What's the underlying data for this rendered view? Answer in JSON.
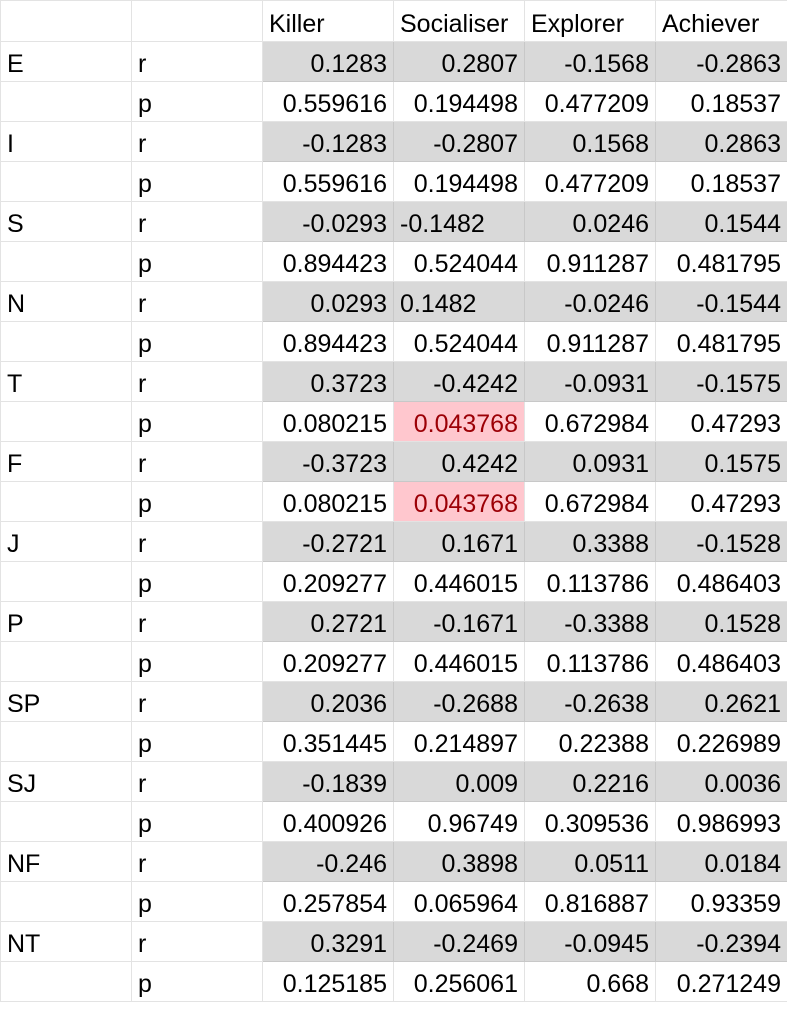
{
  "header": [
    "",
    "",
    "Killer",
    "Socialiser",
    "Explorer",
    "Achiever"
  ],
  "rows": [
    {
      "trait": "E",
      "r": [
        "0.1283",
        "0.2807",
        "-0.1568",
        "-0.2863"
      ],
      "p": [
        "0.559616",
        "0.194498",
        "0.477209",
        "0.18537"
      ]
    },
    {
      "trait": "I",
      "r": [
        "-0.1283",
        "-0.2807",
        "0.1568",
        "0.2863"
      ],
      "p": [
        "0.559616",
        "0.194498",
        "0.477209",
        "0.18537"
      ]
    },
    {
      "trait": "S",
      "r": [
        "-0.0293",
        "-0.1482",
        "0.0246",
        "0.1544"
      ],
      "p": [
        "0.894423",
        "0.524044",
        "0.911287",
        "0.481795"
      ]
    },
    {
      "trait": "N",
      "r": [
        "0.0293",
        "0.1482",
        "-0.0246",
        "-0.1544"
      ],
      "p": [
        "0.894423",
        "0.524044",
        "0.911287",
        "0.481795"
      ]
    },
    {
      "trait": "T",
      "r": [
        "0.3723",
        "-0.4242",
        "-0.0931",
        "-0.1575"
      ],
      "p": [
        "0.080215",
        "0.043768",
        "0.672984",
        "0.47293"
      ]
    },
    {
      "trait": "F",
      "r": [
        "-0.3723",
        "0.4242",
        "0.0931",
        "0.1575"
      ],
      "p": [
        "0.080215",
        "0.043768",
        "0.672984",
        "0.47293"
      ]
    },
    {
      "trait": "J",
      "r": [
        "-0.2721",
        "0.1671",
        "0.3388",
        "-0.1528"
      ],
      "p": [
        "0.209277",
        "0.446015",
        "0.113786",
        "0.486403"
      ]
    },
    {
      "trait": "P",
      "r": [
        "0.2721",
        "-0.1671",
        "-0.3388",
        "0.1528"
      ],
      "p": [
        "0.209277",
        "0.446015",
        "0.113786",
        "0.486403"
      ]
    },
    {
      "trait": "SP",
      "r": [
        "0.2036",
        "-0.2688",
        "-0.2638",
        "0.2621"
      ],
      "p": [
        "0.351445",
        "0.214897",
        "0.22388",
        "0.226989"
      ]
    },
    {
      "trait": "SJ",
      "r": [
        "-0.1839",
        "0.009",
        "0.2216",
        "0.0036"
      ],
      "p": [
        "0.400926",
        "0.96749",
        "0.309536",
        "0.986993"
      ]
    },
    {
      "trait": "NF",
      "r": [
        "-0.246",
        "0.3898",
        "0.0511",
        "0.0184"
      ],
      "p": [
        "0.257854",
        "0.065964",
        "0.816887",
        "0.93359"
      ]
    },
    {
      "trait": "NT",
      "r": [
        "0.3291",
        "-0.2469",
        "-0.0945",
        "-0.2394"
      ],
      "p": [
        "0.125185",
        "0.256061",
        "0.668",
        "0.271249"
      ]
    }
  ],
  "r_label": "r",
  "p_label": "p",
  "highlights": [
    {
      "trait": "T",
      "stat": "p",
      "column": "Socialiser"
    },
    {
      "trait": "F",
      "stat": "p",
      "column": "Socialiser"
    }
  ],
  "left_aligned_cells": [
    {
      "trait": "S",
      "stat": "r",
      "column": "Socialiser"
    },
    {
      "trait": "N",
      "stat": "r",
      "column": "Socialiser"
    }
  ],
  "colors": {
    "r_row_fill": "#d9d9d9",
    "highlight_fill": "#ffc7ce",
    "highlight_text": "#9c0006",
    "gridline": "#e3e3e3"
  }
}
